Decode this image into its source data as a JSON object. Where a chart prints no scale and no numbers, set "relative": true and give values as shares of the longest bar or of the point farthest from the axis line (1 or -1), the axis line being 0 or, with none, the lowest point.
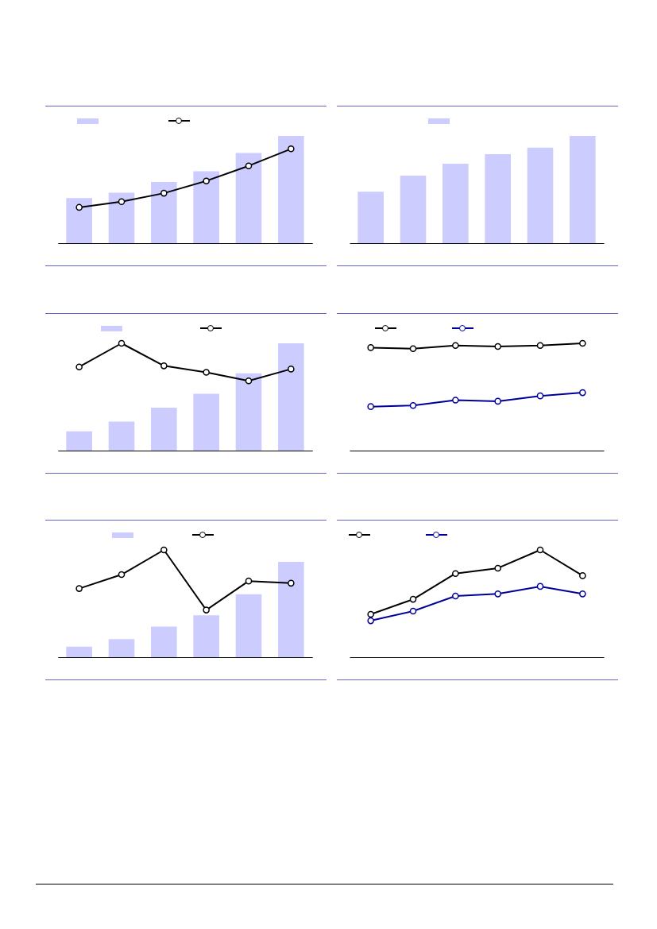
{
  "chart_data": [
    {
      "type": "bar",
      "relative": true,
      "categories": [
        null,
        null,
        null,
        null,
        null,
        null
      ],
      "series": [
        {
          "color": "#ccccff",
          "values": [
            0.42,
            0.47,
            0.57,
            0.67,
            0.84,
            1.0
          ]
        }
      ]
    },
    {
      "type": "line",
      "relative": true,
      "marker": "circle",
      "categories": [
        null,
        null,
        null,
        null,
        null,
        null
      ],
      "series": [
        {
          "color": "#000000",
          "values": [
            0.38,
            0.44,
            0.53,
            0.66,
            0.82,
            1.0
          ]
        }
      ]
    },
    {
      "type": "bar",
      "relative": true,
      "categories": [
        null,
        null,
        null,
        null,
        null,
        null
      ],
      "series": [
        {
          "color": "#ccccff",
          "values": [
            0.48,
            0.63,
            0.74,
            0.83,
            0.89,
            1.0
          ]
        }
      ]
    },
    {
      "type": "bar",
      "relative": true,
      "categories": [
        null,
        null,
        null,
        null,
        null,
        null
      ],
      "series": [
        {
          "color": "#ccccff",
          "values": [
            0.18,
            0.27,
            0.4,
            0.53,
            0.72,
            1.0
          ]
        }
      ]
    },
    {
      "type": "line",
      "relative": true,
      "marker": "circle",
      "categories": [
        null,
        null,
        null,
        null,
        null,
        null
      ],
      "series": [
        {
          "color": "#000000",
          "values": [
            0.78,
            1.0,
            0.79,
            0.73,
            0.65,
            0.76
          ]
        }
      ]
    },
    {
      "type": "line",
      "relative": true,
      "marker": "circle",
      "categories": [
        null,
        null,
        null,
        null,
        null,
        null
      ],
      "series": [
        {
          "color": "#000000",
          "values": [
            0.96,
            0.95,
            0.98,
            0.97,
            0.98,
            1.0
          ]
        },
        {
          "color": "#000099",
          "values": [
            0.41,
            0.42,
            0.47,
            0.46,
            0.51,
            0.54
          ]
        }
      ]
    },
    {
      "type": "bar",
      "relative": true,
      "categories": [
        null,
        null,
        null,
        null,
        null,
        null
      ],
      "series": [
        {
          "color": "#ccccff",
          "values": [
            0.11,
            0.19,
            0.32,
            0.44,
            0.66,
            1.0
          ]
        }
      ]
    },
    {
      "type": "line",
      "relative": true,
      "marker": "circle",
      "categories": [
        null,
        null,
        null,
        null,
        null,
        null
      ],
      "series": [
        {
          "color": "#000000",
          "values": [
            0.64,
            0.77,
            1.0,
            0.44,
            0.71,
            0.69
          ]
        }
      ]
    },
    {
      "type": "line",
      "relative": true,
      "marker": "circle",
      "categories": [
        null,
        null,
        null,
        null,
        null,
        null
      ],
      "series": [
        {
          "color": "#000000",
          "values": [
            0.4,
            0.54,
            0.78,
            0.83,
            1.0,
            0.76
          ]
        },
        {
          "color": "#000099",
          "values": [
            0.34,
            0.43,
            0.57,
            0.59,
            0.66,
            0.59
          ]
        }
      ]
    }
  ]
}
